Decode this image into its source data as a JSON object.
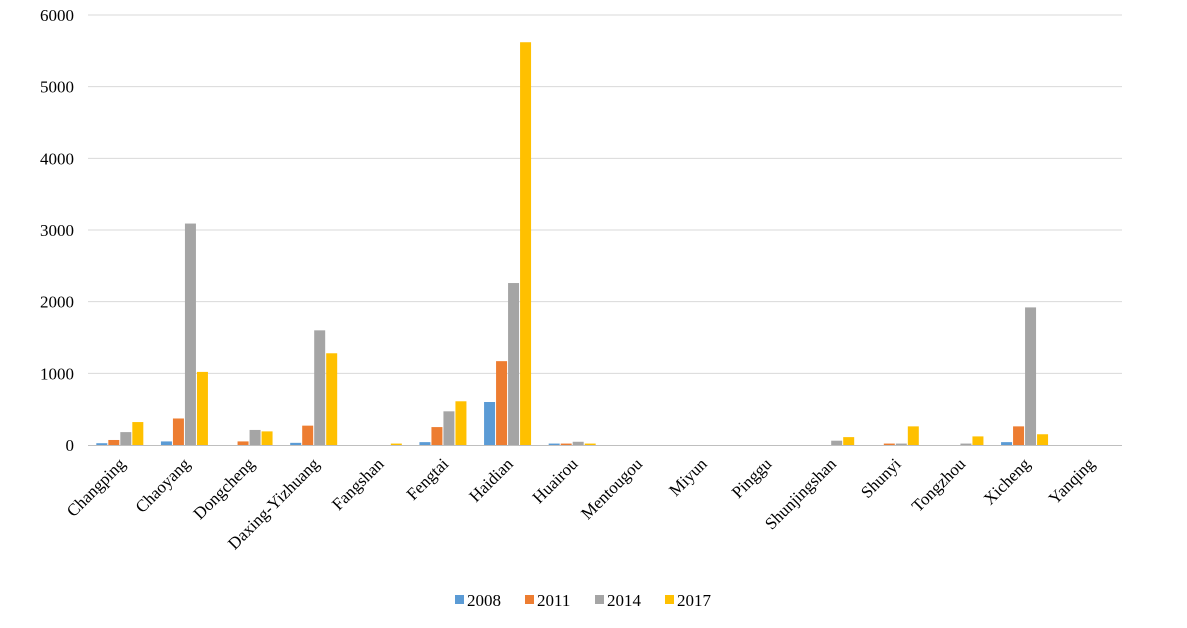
{
  "chart_data": {
    "type": "bar",
    "title": "",
    "xlabel": "",
    "ylabel": "",
    "ylim": [
      0,
      6000
    ],
    "yticks": [
      "0",
      "1000",
      "2000",
      "3000",
      "4000",
      "5000",
      "6000"
    ],
    "grid": "horizontal",
    "legend_position": "bottom",
    "categories": [
      "Changping",
      "Chaoyang",
      "Dongcheng",
      "Daxing-Yizhuang",
      "Fangshan",
      "Fengtai",
      "Haidian",
      "Huairou",
      "Mentougou",
      "Miyun",
      "Pinggu",
      "Shunjingshan",
      "Shunyi",
      "Tongzhou",
      "Xicheng",
      "Yanqing"
    ],
    "series": [
      {
        "name": "2008",
        "color": "#5B9BD5",
        "values": [
          25,
          50,
          0,
          30,
          0,
          40,
          600,
          20,
          0,
          0,
          0,
          0,
          0,
          0,
          40,
          0
        ]
      },
      {
        "name": "2011",
        "color": "#ED7D31",
        "values": [
          70,
          370,
          50,
          270,
          0,
          250,
          1170,
          20,
          0,
          0,
          0,
          0,
          20,
          0,
          260,
          0
        ]
      },
      {
        "name": "2014",
        "color": "#A5A5A5",
        "values": [
          180,
          3090,
          210,
          1600,
          0,
          470,
          2260,
          45,
          0,
          0,
          0,
          60,
          20,
          20,
          1920,
          0
        ]
      },
      {
        "name": "2017",
        "color": "#FFC000",
        "values": [
          320,
          1020,
          190,
          1280,
          20,
          610,
          5620,
          20,
          0,
          0,
          0,
          110,
          260,
          120,
          150,
          0
        ]
      }
    ]
  }
}
